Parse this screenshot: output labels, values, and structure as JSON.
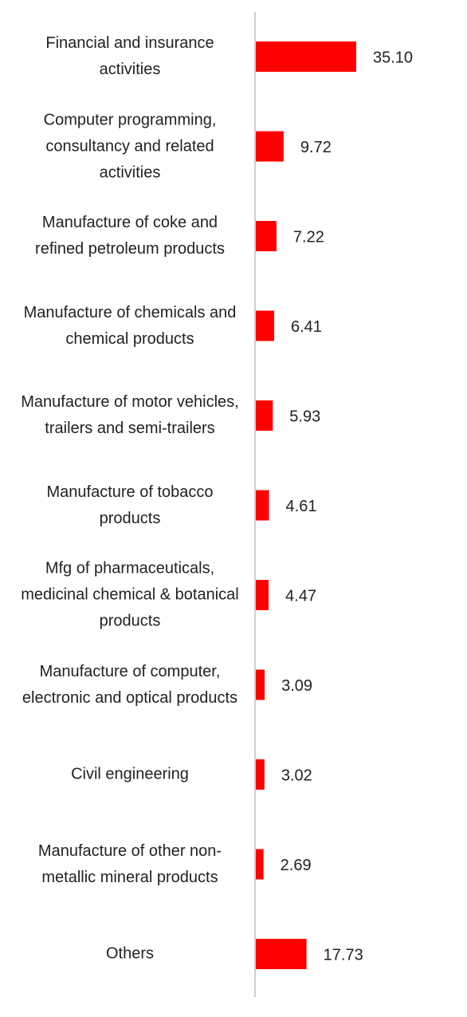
{
  "chart_data": {
    "type": "bar",
    "orientation": "horizontal",
    "color": "#ff0000",
    "categories": [
      "Financial and insurance activities",
      "Computer programming, consultancy and related activities",
      "Manufacture of coke and refined petroleum products",
      "Manufacture of chemicals and chemical products",
      "Manufacture of motor vehicles, trailers and semi-trailers",
      "Manufacture of tobacco products",
      "Mfg of pharmaceuticals, medicinal chemical & botanical products",
      "Manufacture of computer, electronic and optical products",
      "Civil engineering",
      "Manufacture of other non-metallic mineral products",
      "Others"
    ],
    "values": [
      35.1,
      9.72,
      7.22,
      6.41,
      5.93,
      4.61,
      4.47,
      3.09,
      3.02,
      2.69,
      17.73
    ],
    "value_labels": [
      "35.10",
      "9.72",
      "7.22",
      "6.41",
      "5.93",
      "4.61",
      "4.47",
      "3.09",
      "3.02",
      "2.69",
      "17.73"
    ]
  }
}
